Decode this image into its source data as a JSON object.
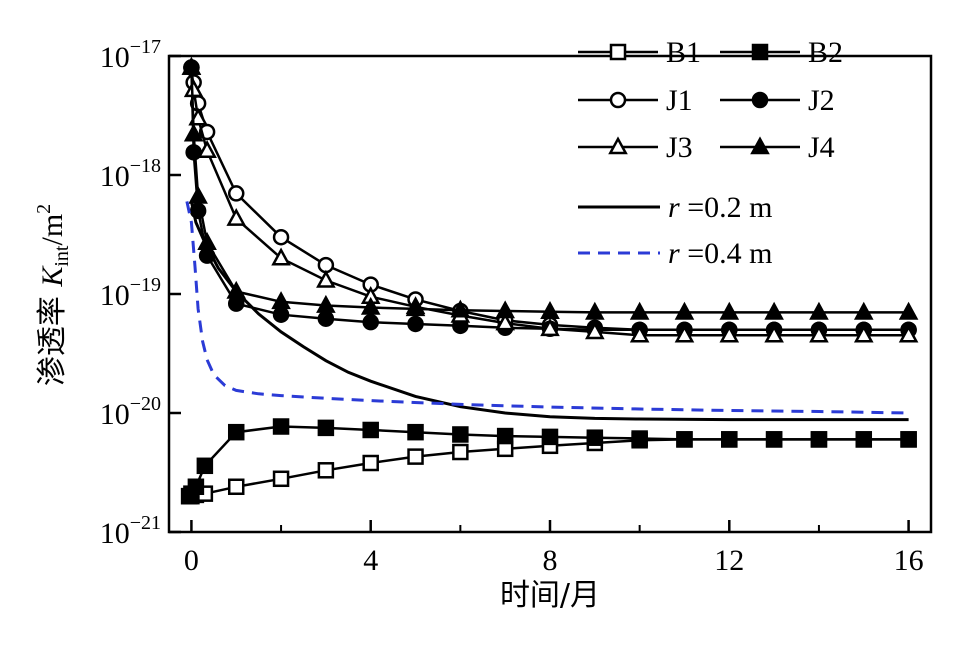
{
  "chart_data": {
    "type": "line",
    "title": "",
    "xlabel": "时间/月",
    "ylabel": {
      "prefix": "渗透率 ",
      "K": "K",
      "K_sub": "int",
      "unit": "/m",
      "unit_sup": "2"
    },
    "x_scale": "linear",
    "y_scale": "log",
    "xlim": [
      -0.5,
      16.5
    ],
    "ylim": [
      1e-21,
      1e-17
    ],
    "x_ticks": [
      {
        "value": 0,
        "label": "0"
      },
      {
        "value": 4,
        "label": "4"
      },
      {
        "value": 8,
        "label": "8"
      },
      {
        "value": 12,
        "label": "12"
      },
      {
        "value": 16,
        "label": "16"
      }
    ],
    "y_ticks": [
      {
        "exp": -17,
        "base": "10",
        "sup": "−17"
      },
      {
        "exp": -18,
        "base": "10",
        "sup": "−18"
      },
      {
        "exp": -19,
        "base": "10",
        "sup": "−19"
      },
      {
        "exp": -20,
        "base": "10",
        "sup": "−20"
      },
      {
        "exp": -21,
        "base": "10",
        "sup": "−21"
      }
    ],
    "grid": false,
    "legend_position": "top-right",
    "series": [
      {
        "name": "B1",
        "marker": "square-open",
        "color": "#000000",
        "points": [
          [
            -0.05,
            2e-21
          ],
          [
            0,
            2e-21
          ],
          [
            0.1,
            2.05e-21
          ],
          [
            0.3,
            2.1e-21
          ],
          [
            1,
            2.4e-21
          ],
          [
            2,
            2.8e-21
          ],
          [
            3,
            3.3e-21
          ],
          [
            4,
            3.8e-21
          ],
          [
            5,
            4.3e-21
          ],
          [
            6,
            4.7e-21
          ],
          [
            7,
            5e-21
          ],
          [
            8,
            5.3e-21
          ],
          [
            9,
            5.6e-21
          ],
          [
            10,
            5.9e-21
          ],
          [
            11,
            6e-21
          ],
          [
            12,
            6e-21
          ],
          [
            13,
            6e-21
          ],
          [
            14,
            6e-21
          ],
          [
            15,
            6e-21
          ],
          [
            16,
            6e-21
          ]
        ]
      },
      {
        "name": "B2",
        "marker": "square-filled",
        "color": "#000000",
        "points": [
          [
            -0.05,
            2e-21
          ],
          [
            0,
            2.1e-21
          ],
          [
            0.1,
            2.4e-21
          ],
          [
            0.3,
            3.6e-21
          ],
          [
            1,
            6.9e-21
          ],
          [
            2,
            7.7e-21
          ],
          [
            3,
            7.5e-21
          ],
          [
            4,
            7.2e-21
          ],
          [
            5,
            6.9e-21
          ],
          [
            6,
            6.6e-21
          ],
          [
            7,
            6.4e-21
          ],
          [
            8,
            6.3e-21
          ],
          [
            9,
            6.2e-21
          ],
          [
            10,
            6.1e-21
          ],
          [
            11,
            6e-21
          ],
          [
            12,
            6e-21
          ],
          [
            13,
            6e-21
          ],
          [
            14,
            6e-21
          ],
          [
            15,
            6e-21
          ],
          [
            16,
            6e-21
          ]
        ]
      },
      {
        "name": "J1",
        "marker": "circle-open",
        "color": "#000000",
        "points": [
          [
            0,
            8e-18
          ],
          [
            0.05,
            6e-18
          ],
          [
            0.15,
            4e-18
          ],
          [
            0.35,
            2.3e-18
          ],
          [
            1,
            7e-19
          ],
          [
            2,
            3e-19
          ],
          [
            3,
            1.75e-19
          ],
          [
            4,
            1.2e-19
          ],
          [
            5,
            9e-20
          ],
          [
            6,
            7.2e-20
          ],
          [
            7,
            6e-20
          ],
          [
            8,
            5.5e-20
          ],
          [
            9,
            5.2e-20
          ],
          [
            10,
            5e-20
          ],
          [
            11,
            5e-20
          ],
          [
            12,
            5e-20
          ],
          [
            13,
            5e-20
          ],
          [
            14,
            5e-20
          ],
          [
            15,
            5e-20
          ],
          [
            16,
            5e-20
          ]
        ]
      },
      {
        "name": "J2",
        "marker": "circle-filled",
        "color": "#000000",
        "points": [
          [
            0,
            8e-18
          ],
          [
            0.05,
            1.55e-18
          ],
          [
            0.15,
            5e-19
          ],
          [
            0.35,
            2.1e-19
          ],
          [
            1,
            8.3e-20
          ],
          [
            2,
            6.7e-20
          ],
          [
            3,
            6.2e-20
          ],
          [
            4,
            5.8e-20
          ],
          [
            5,
            5.6e-20
          ],
          [
            6,
            5.4e-20
          ],
          [
            7,
            5.2e-20
          ],
          [
            8,
            5.1e-20
          ],
          [
            9,
            5e-20
          ],
          [
            10,
            5e-20
          ],
          [
            11,
            5e-20
          ],
          [
            12,
            5e-20
          ],
          [
            13,
            5e-20
          ],
          [
            14,
            5e-20
          ],
          [
            15,
            5e-20
          ],
          [
            16,
            5e-20
          ]
        ]
      },
      {
        "name": "J3",
        "marker": "triangle-open",
        "color": "#000000",
        "points": [
          [
            0,
            8e-18
          ],
          [
            0.05,
            5.2e-18
          ],
          [
            0.15,
            3e-18
          ],
          [
            0.35,
            1.6e-18
          ],
          [
            1,
            4.3e-19
          ],
          [
            2,
            2e-19
          ],
          [
            3,
            1.3e-19
          ],
          [
            4,
            9.5e-20
          ],
          [
            5,
            7.8e-20
          ],
          [
            6,
            6.6e-20
          ],
          [
            7,
            5.7e-20
          ],
          [
            8,
            5.1e-20
          ],
          [
            9,
            4.8e-20
          ],
          [
            10,
            4.5e-20
          ],
          [
            11,
            4.5e-20
          ],
          [
            12,
            4.5e-20
          ],
          [
            13,
            4.5e-20
          ],
          [
            14,
            4.5e-20
          ],
          [
            15,
            4.5e-20
          ],
          [
            16,
            4.5e-20
          ]
        ]
      },
      {
        "name": "J4",
        "marker": "triangle-filled",
        "color": "#000000",
        "points": [
          [
            0,
            8e-18
          ],
          [
            0.05,
            2.2e-18
          ],
          [
            0.15,
            6.6e-19
          ],
          [
            0.35,
            2.7e-19
          ],
          [
            1,
            1.05e-19
          ],
          [
            2,
            8.6e-20
          ],
          [
            3,
            8e-20
          ],
          [
            4,
            7.7e-20
          ],
          [
            5,
            7.5e-20
          ],
          [
            6,
            7.3e-20
          ],
          [
            7,
            7.2e-20
          ],
          [
            8,
            7.1e-20
          ],
          [
            9,
            7e-20
          ],
          [
            10,
            7e-20
          ],
          [
            11,
            7e-20
          ],
          [
            12,
            7e-20
          ],
          [
            13,
            7e-20
          ],
          [
            14,
            7e-20
          ],
          [
            15,
            7e-20
          ],
          [
            16,
            7e-20
          ]
        ]
      },
      {
        "name": "r =0.2 m",
        "label_italic": "r",
        "label_rest": " =0.2 m",
        "marker": "none",
        "line": "solid",
        "color": "#000000",
        "points": [
          [
            0,
            6e-19
          ],
          [
            0.1,
            4e-19
          ],
          [
            0.3,
            2.7e-19
          ],
          [
            0.6,
            1.65e-19
          ],
          [
            1,
            1.05e-19
          ],
          [
            1.5,
            6.8e-20
          ],
          [
            2,
            4.8e-20
          ],
          [
            2.5,
            3.6e-20
          ],
          [
            3,
            2.75e-20
          ],
          [
            3.5,
            2.2e-20
          ],
          [
            4,
            1.85e-20
          ],
          [
            5,
            1.38e-20
          ],
          [
            6,
            1.13e-20
          ],
          [
            7,
            1e-20
          ],
          [
            8,
            9.3e-21
          ],
          [
            9,
            9e-21
          ],
          [
            10,
            8.9e-21
          ],
          [
            12,
            8.8e-21
          ],
          [
            14,
            8.8e-21
          ],
          [
            16,
            8.8e-21
          ]
        ]
      },
      {
        "name": "r =0.4 m",
        "label_italic": "r",
        "label_rest": " =0.4 m",
        "marker": "none",
        "line": "dashed",
        "color": "#2b3bd6",
        "points": [
          [
            -0.1,
            6e-19
          ],
          [
            0,
            4e-19
          ],
          [
            0.08,
            1.7e-19
          ],
          [
            0.15,
            7.5e-20
          ],
          [
            0.25,
            4e-20
          ],
          [
            0.35,
            2.8e-20
          ],
          [
            0.5,
            2.1e-20
          ],
          [
            0.75,
            1.7e-20
          ],
          [
            1,
            1.55e-20
          ],
          [
            1.5,
            1.45e-20
          ],
          [
            2,
            1.4e-20
          ],
          [
            3,
            1.33e-20
          ],
          [
            4,
            1.27e-20
          ],
          [
            6,
            1.18e-20
          ],
          [
            8,
            1.12e-20
          ],
          [
            10,
            1.08e-20
          ],
          [
            12,
            1.05e-20
          ],
          [
            14,
            1.03e-20
          ],
          [
            16,
            1e-20
          ]
        ]
      }
    ]
  }
}
